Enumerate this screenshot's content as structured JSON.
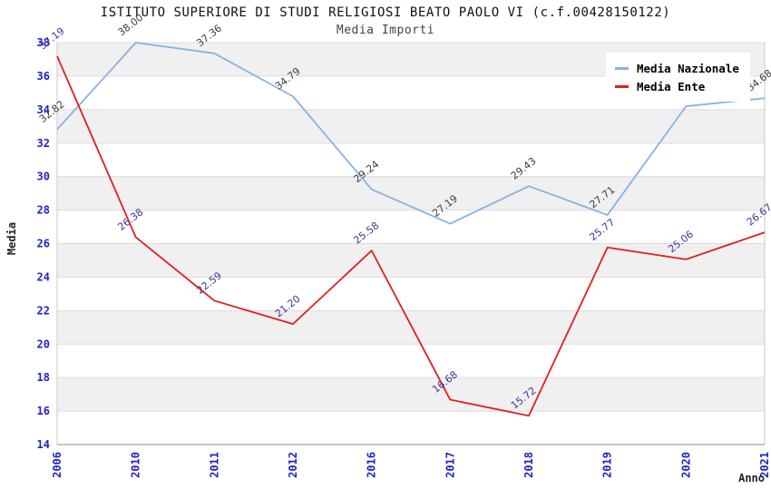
{
  "title": "ISTITUTO SUPERIORE DI STUDI RELIGIOSI BEATO PAOLO VI (c.f.00428150122)",
  "subtitle": "Media Importi",
  "legend": {
    "items": [
      {
        "label": "Media Nazionale",
        "color": "#85b3e3"
      },
      {
        "label": "Media Ente",
        "color": "#e51c1c"
      }
    ]
  },
  "axis_colors": {
    "tick_label": "#2121c8",
    "grid_band": "#f0f0f0",
    "grid_line": "#dcdcdc",
    "frame": "#c8c8c8",
    "baseline": "#b0b0b0"
  },
  "chart_data": {
    "type": "line",
    "title": "ISTITUTO SUPERIORE DI STUDI RELIGIOSI BEATO PAOLO VI (c.f.00428150122)",
    "subtitle": "Media Importi",
    "xlabel": "Anno",
    "ylabel": "Media",
    "categories": [
      "2006",
      "2010",
      "2011",
      "2012",
      "2016",
      "2017",
      "2018",
      "2019",
      "2020",
      "2021"
    ],
    "series": [
      {
        "name": "Media Nazionale",
        "color": "#85b3e3",
        "label_color": "#3d3d3d",
        "values": [
          32.82,
          38.0,
          37.36,
          34.79,
          29.24,
          27.19,
          29.43,
          27.71,
          34.2,
          34.68
        ],
        "labels": [
          "32.82",
          "38.00",
          "37.36",
          "34.79",
          "29.24",
          "27.19",
          "29.43",
          "27.71",
          "34.2",
          "34.68"
        ]
      },
      {
        "name": "Media Ente",
        "color": "#e51c1c",
        "label_color": "#38389a",
        "values": [
          37.19,
          26.38,
          22.59,
          21.2,
          25.58,
          16.68,
          15.72,
          25.77,
          25.06,
          26.67
        ],
        "labels": [
          "37.19",
          "26.38",
          "22.59",
          "21.20",
          "25.58",
          "16.68",
          "15.72",
          "25.77",
          "25.06",
          "26.67"
        ]
      }
    ],
    "ylim": [
      14,
      38
    ],
    "ytick_step": 2,
    "yticks": [
      14,
      16,
      18,
      20,
      22,
      24,
      26,
      28,
      30,
      32,
      34,
      36,
      38
    ],
    "grid": "horizontal-bands",
    "legend_position": "top-right"
  }
}
